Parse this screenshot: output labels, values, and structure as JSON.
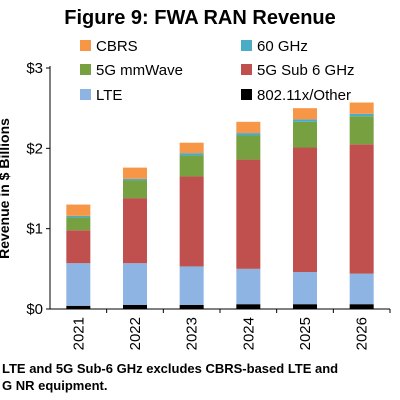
{
  "chart_data": {
    "type": "bar",
    "stacked": true,
    "title": "Figure 9: FWA RAN Revenue",
    "ylabel": "Revenue in $ Billions",
    "ylim": [
      0,
      3
    ],
    "yticks": [
      "$0",
      "$1",
      "$2",
      "$3"
    ],
    "grid": false,
    "legend_position": "top",
    "categories": [
      "2021",
      "2022",
      "2023",
      "2024",
      "2025",
      "2026"
    ],
    "series": [
      {
        "name": "802.11x/Other",
        "color": "#000000",
        "values": [
          0.04,
          0.05,
          0.05,
          0.06,
          0.06,
          0.06
        ]
      },
      {
        "name": "LTE",
        "color": "#8db4e2",
        "values": [
          0.53,
          0.52,
          0.48,
          0.44,
          0.4,
          0.38
        ]
      },
      {
        "name": "5G Sub 6 GHz",
        "color": "#c0504d",
        "values": [
          0.41,
          0.81,
          1.12,
          1.36,
          1.55,
          1.61
        ]
      },
      {
        "name": "5G mmWave",
        "color": "#77a041",
        "values": [
          0.16,
          0.22,
          0.26,
          0.3,
          0.32,
          0.35
        ]
      },
      {
        "name": "60 GHz",
        "color": "#4bacc6",
        "values": [
          0.02,
          0.02,
          0.03,
          0.03,
          0.03,
          0.03
        ]
      },
      {
        "name": "CBRS",
        "color": "#f79646",
        "values": [
          0.14,
          0.14,
          0.13,
          0.14,
          0.14,
          0.14
        ]
      }
    ]
  },
  "legend": [
    {
      "name": "CBRS",
      "color": "#f79646"
    },
    {
      "name": "60 GHz",
      "color": "#4bacc6"
    },
    {
      "name": "5G mmWave",
      "color": "#77a041"
    },
    {
      "name": "5G Sub 6 GHz",
      "color": "#c0504d"
    },
    {
      "name": "LTE",
      "color": "#8db4e2"
    },
    {
      "name": "802.11x/Other",
      "color": "#000000"
    }
  ],
  "footnote": "LTE and 5G Sub-6 GHz excludes CBRS-based LTE and\nG NR equipment."
}
